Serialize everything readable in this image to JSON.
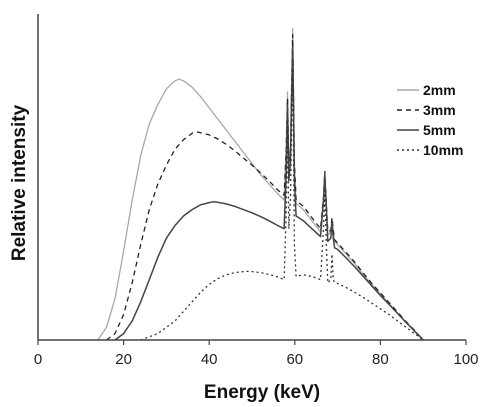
{
  "chart_data": {
    "type": "line",
    "title": "",
    "xlabel": "Energy (keV)",
    "ylabel": "Relative intensity",
    "xlim": [
      0,
      100
    ],
    "ylim": [
      0,
      1
    ],
    "xticks": [
      "0",
      "20",
      "40",
      "60",
      "80",
      "100"
    ],
    "y_tick_labels": false,
    "grid": false,
    "legend": "top-right",
    "series": [
      {
        "name": "2mm",
        "color": "#a8a8a8",
        "dash": "solid",
        "x": [
          14,
          16,
          18,
          20,
          22,
          24,
          26,
          28,
          30,
          32,
          33,
          34,
          36,
          38,
          40,
          42,
          44,
          46,
          48,
          50,
          52,
          54,
          56,
          57.5,
          58,
          58.3,
          58.6,
          59,
          59.2,
          59.5,
          59.9,
          60.3,
          62,
          64,
          66,
          66.7,
          67,
          67.3,
          67.7,
          68.4,
          68.7,
          69,
          69.3,
          70,
          72,
          74,
          76,
          78,
          80,
          82,
          84,
          86,
          88,
          90
        ],
        "y": [
          0,
          0.04,
          0.13,
          0.28,
          0.44,
          0.58,
          0.68,
          0.74,
          0.79,
          0.815,
          0.82,
          0.815,
          0.795,
          0.765,
          0.73,
          0.695,
          0.66,
          0.625,
          0.59,
          0.555,
          0.52,
          0.49,
          0.46,
          0.44,
          0.6,
          0.78,
          0.55,
          0.6,
          0.76,
          0.98,
          0.55,
          0.43,
          0.41,
          0.375,
          0.34,
          0.44,
          0.52,
          0.44,
          0.33,
          0.34,
          0.38,
          0.34,
          0.31,
          0.3,
          0.27,
          0.24,
          0.205,
          0.175,
          0.145,
          0.115,
          0.085,
          0.055,
          0.03,
          0
        ]
      },
      {
        "name": "3mm",
        "color": "#222222",
        "dash": "5,4",
        "x": [
          16,
          18,
          20,
          22,
          24,
          26,
          28,
          30,
          32,
          34,
          36,
          37,
          38,
          40,
          42,
          44,
          46,
          48,
          50,
          52,
          54,
          56,
          57.5,
          58,
          58.3,
          58.6,
          59,
          59.2,
          59.5,
          59.9,
          60.3,
          62,
          64,
          66,
          66.7,
          67,
          67.3,
          67.7,
          68.4,
          68.7,
          69,
          69.3,
          70,
          72,
          74,
          76,
          78,
          80,
          82,
          84,
          86,
          88,
          90
        ],
        "y": [
          0,
          0.02,
          0.08,
          0.18,
          0.3,
          0.41,
          0.49,
          0.55,
          0.6,
          0.63,
          0.65,
          0.655,
          0.652,
          0.645,
          0.632,
          0.615,
          0.595,
          0.572,
          0.55,
          0.525,
          0.5,
          0.472,
          0.455,
          0.6,
          0.76,
          0.56,
          0.6,
          0.76,
          0.96,
          0.56,
          0.44,
          0.42,
          0.385,
          0.35,
          0.45,
          0.53,
          0.45,
          0.34,
          0.345,
          0.385,
          0.345,
          0.315,
          0.305,
          0.275,
          0.245,
          0.21,
          0.178,
          0.148,
          0.118,
          0.088,
          0.058,
          0.03,
          0
        ]
      },
      {
        "name": "5mm",
        "color": "#444444",
        "dash": "solid",
        "x": [
          18,
          20,
          22,
          24,
          26,
          28,
          30,
          32,
          34,
          36,
          38,
          40,
          41,
          42,
          44,
          46,
          48,
          50,
          52,
          54,
          56,
          57.5,
          58,
          58.3,
          58.6,
          59,
          59.2,
          59.5,
          59.9,
          60.3,
          62,
          64,
          66,
          66.7,
          67,
          67.3,
          67.7,
          68.4,
          68.7,
          69,
          69.3,
          70,
          72,
          74,
          76,
          78,
          80,
          82,
          84,
          86,
          88,
          90
        ],
        "y": [
          0,
          0.02,
          0.06,
          0.12,
          0.19,
          0.26,
          0.32,
          0.36,
          0.39,
          0.41,
          0.425,
          0.432,
          0.435,
          0.433,
          0.428,
          0.42,
          0.41,
          0.4,
          0.388,
          0.375,
          0.36,
          0.35,
          0.52,
          0.74,
          0.5,
          0.56,
          0.72,
          0.92,
          0.5,
          0.39,
          0.375,
          0.35,
          0.325,
          0.44,
          0.52,
          0.44,
          0.31,
          0.32,
          0.37,
          0.32,
          0.29,
          0.285,
          0.258,
          0.23,
          0.2,
          0.17,
          0.14,
          0.112,
          0.084,
          0.055,
          0.028,
          0
        ]
      },
      {
        "name": "10mm",
        "color": "#333333",
        "dash": "2,3",
        "x": [
          24,
          26,
          28,
          30,
          32,
          34,
          36,
          38,
          40,
          42,
          44,
          46,
          48,
          49,
          50,
          52,
          54,
          56,
          57.5,
          58,
          58.3,
          58.6,
          59,
          59.2,
          59.5,
          59.9,
          60.3,
          62,
          64,
          66,
          66.7,
          67,
          67.3,
          67.7,
          68.4,
          68.7,
          69,
          69.3,
          70,
          72,
          74,
          76,
          78,
          80,
          82,
          84,
          86,
          88,
          90
        ],
        "y": [
          0,
          0.01,
          0.02,
          0.04,
          0.06,
          0.09,
          0.12,
          0.15,
          0.175,
          0.193,
          0.205,
          0.212,
          0.215,
          0.216,
          0.215,
          0.212,
          0.206,
          0.198,
          0.19,
          0.4,
          0.7,
          0.35,
          0.45,
          0.65,
          0.88,
          0.3,
          0.2,
          0.205,
          0.2,
          0.19,
          0.35,
          0.47,
          0.33,
          0.18,
          0.19,
          0.27,
          0.19,
          0.18,
          0.178,
          0.165,
          0.15,
          0.134,
          0.116,
          0.098,
          0.08,
          0.06,
          0.04,
          0.02,
          0
        ]
      }
    ]
  }
}
